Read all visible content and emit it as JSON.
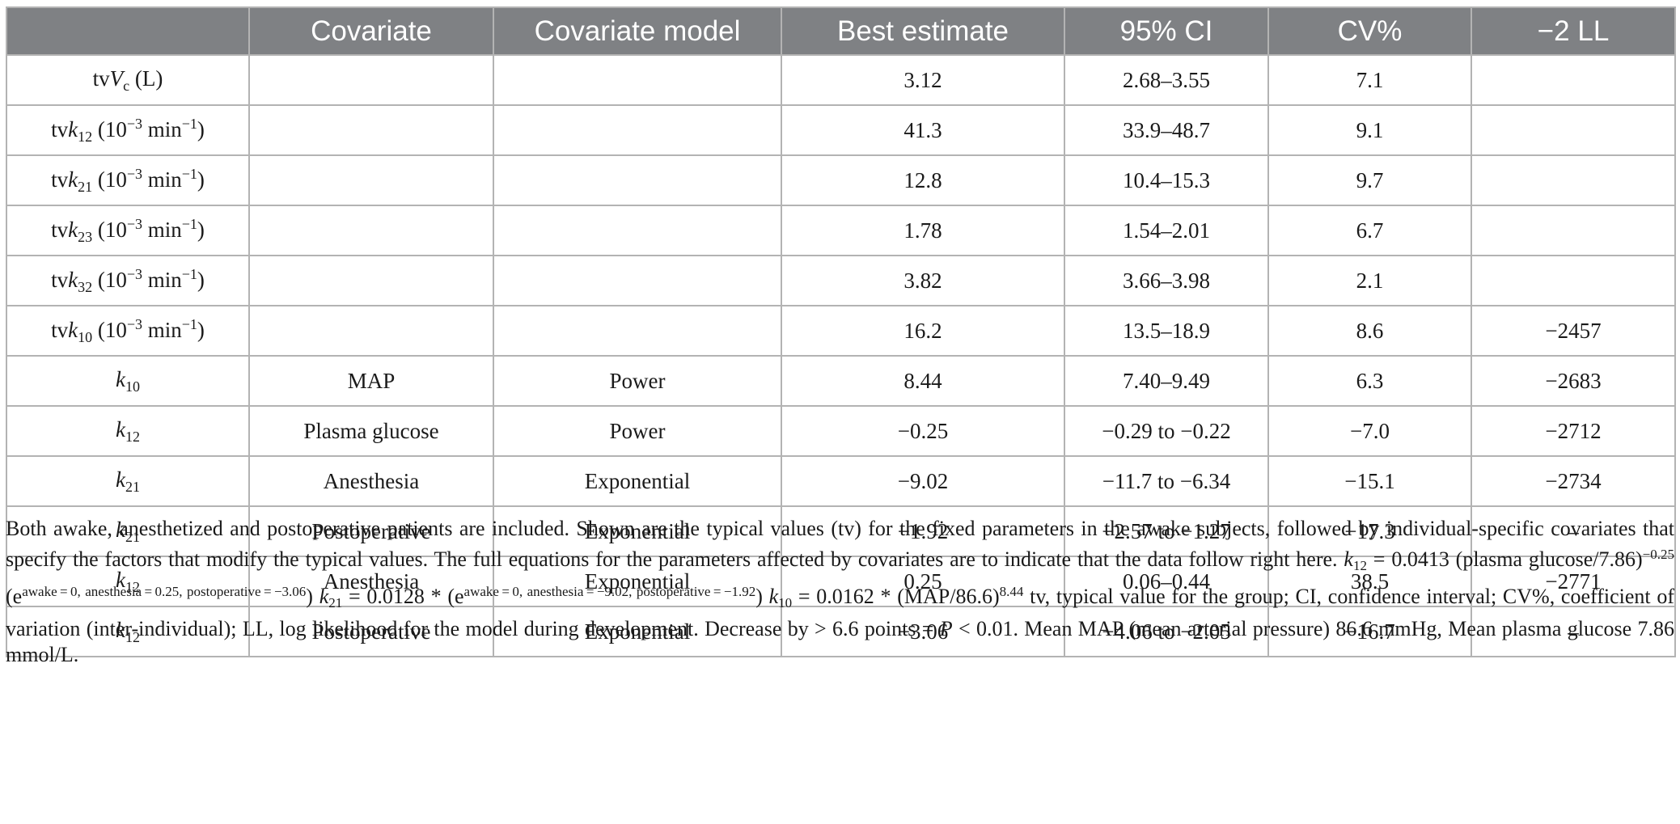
{
  "table": {
    "headers": [
      "",
      "Covariate",
      "Covariate model",
      "Best estimate",
      "95% CI",
      "CV%",
      "−2 LL"
    ],
    "rows": [
      {
        "param": {
          "pre": "tv",
          "sym": "V",
          "sub": "c",
          "unit": " (L)"
        },
        "covariate": "",
        "model": "",
        "estimate": "3.12",
        "ci": "2.68–3.55",
        "cv": "7.1",
        "ll": ""
      },
      {
        "param": {
          "pre": "tv",
          "sym": "k",
          "sub": "12",
          "unit": " (10",
          "exp": "−3",
          "unit2": " min",
          "exp2": "−1",
          "unit3": ")"
        },
        "covariate": "",
        "model": "",
        "estimate": "41.3",
        "ci": "33.9–48.7",
        "cv": "9.1",
        "ll": ""
      },
      {
        "param": {
          "pre": "tv",
          "sym": "k",
          "sub": "21",
          "unit": " (10",
          "exp": "−3",
          "unit2": " min",
          "exp2": "−1",
          "unit3": ")"
        },
        "covariate": "",
        "model": "",
        "estimate": "12.8",
        "ci": "10.4–15.3",
        "cv": "9.7",
        "ll": ""
      },
      {
        "param": {
          "pre": "tv",
          "sym": "k",
          "sub": "23",
          "unit": " (10",
          "exp": "−3",
          "unit2": " min",
          "exp2": "−1",
          "unit3": ")"
        },
        "covariate": "",
        "model": "",
        "estimate": "1.78",
        "ci": "1.54–2.01",
        "cv": "6.7",
        "ll": ""
      },
      {
        "param": {
          "pre": "tv",
          "sym": "k",
          "sub": "32",
          "unit": " (10",
          "exp": "−3",
          "unit2": " min",
          "exp2": "−1",
          "unit3": ")"
        },
        "covariate": "",
        "model": "",
        "estimate": "3.82",
        "ci": "3.66–3.98",
        "cv": "2.1",
        "ll": ""
      },
      {
        "param": {
          "pre": "tv",
          "sym": "k",
          "sub": "10",
          "unit": " (10",
          "exp": "−3",
          "unit2": " min",
          "exp2": "−1",
          "unit3": ")"
        },
        "covariate": "",
        "model": "",
        "estimate": "16.2",
        "ci": "13.5–18.9",
        "cv": "8.6",
        "ll": "−2457"
      },
      {
        "param": {
          "pre": "",
          "sym": "k",
          "sub": "10"
        },
        "covariate": "MAP",
        "model": "Power",
        "estimate": "8.44",
        "ci": "7.40–9.49",
        "cv": "6.3",
        "ll": "−2683"
      },
      {
        "param": {
          "pre": "",
          "sym": "k",
          "sub": "12"
        },
        "covariate": "Plasma glucose",
        "model": "Power",
        "estimate": "−0.25",
        "ci": "−0.29 to −0.22",
        "cv": "−7.0",
        "ll": "−2712"
      },
      {
        "param": {
          "pre": "",
          "sym": "k",
          "sub": "21"
        },
        "covariate": "Anesthesia",
        "model": "Exponential",
        "estimate": "−9.02",
        "ci": "−11.7 to −6.34",
        "cv": "−15.1",
        "ll": "−2734"
      },
      {
        "param": {
          "pre": "",
          "sym": "k",
          "sub": "21"
        },
        "covariate": "Postoperative",
        "model": "Exponential",
        "estimate": "−1.92",
        "ci": "−2.57 to −1.27",
        "cv": "−17.3",
        "ll": "–"
      },
      {
        "param": {
          "pre": "",
          "sym": "k",
          "sub": "12"
        },
        "covariate": "Anesthesia",
        "model": "Exponential",
        "estimate": "0.25",
        "ci": "0.06–0.44",
        "cv": "38.5",
        "ll": "−2771"
      },
      {
        "param": {
          "pre": "",
          "sym": "k",
          "sub": "12"
        },
        "covariate": "Postoperative",
        "model": "Exponential",
        "estimate": "−3.06",
        "ci": "−4.06 to −2.05",
        "cv": "−16.7",
        "ll": "–"
      }
    ]
  },
  "footnote": {
    "intro": "Both awake, anesthetized and postoperative patients are included. Shown are the typical values (tv) for the fixed parameters in the awake subjects, followed by individual-specific covariates that specify the factors that modify the typical values. The full equations for the parameters affected by covariates are to indicate that the data follow right here. ",
    "k12_sym": "k",
    "k12_sub": "12",
    "k12_eq": " = 0.0413 (plasma glucose/7.86)",
    "k12_pow": "−0.25",
    "k12_e": " (e",
    "k12_e_pow": "awake = 0,  anesthesia = 0.25,  postoperative = −3.06",
    "k12_close": ") ",
    "k21_sym": "k",
    "k21_sub": "21",
    "k21_eq": " = 0.0128 * (e",
    "k21_e_pow": "awake = 0,  anesthesia = −9.02,  postoperative = −1.92",
    "k21_close": ") ",
    "k10_sym": "k",
    "k10_sub": "10",
    "k10_eq": " = 0.0162 * (MAP/86.6)",
    "k10_pow": "8.44",
    "rest1": " tv, typical value for the group; CI, confidence interval; CV%, coefficient of variation (inter-individual); LL, log likelihood for the model during development. Decrease by > 6.6 points = ",
    "p_sym": "P",
    "rest2": " < 0.01. Mean MAP (mean arterial pressure) 86.6 mmHg, Mean plasma glucose 7.86 mmol/L."
  }
}
